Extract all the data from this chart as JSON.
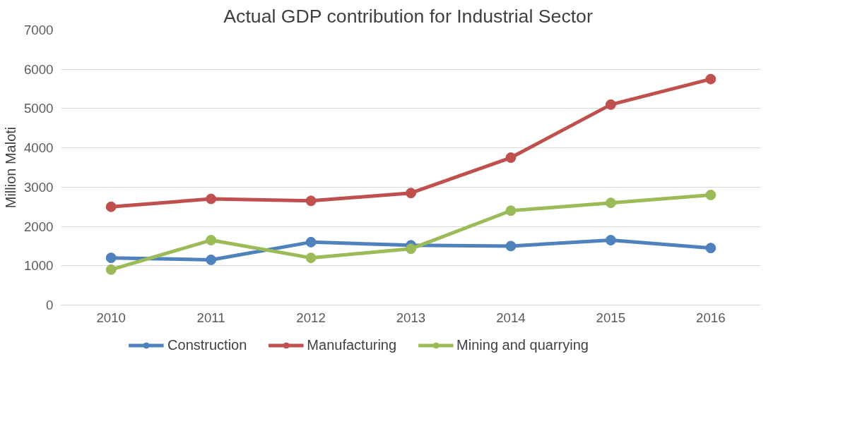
{
  "chart_data": {
    "type": "line",
    "title": "Actual GDP contribution for  Industrial Sector",
    "ylabel": "Million Maloti",
    "categories": [
      "2010",
      "2011",
      "2012",
      "2013",
      "2014",
      "2015",
      "2016"
    ],
    "series": [
      {
        "name": "Construction",
        "color": "#4f81bd",
        "values": [
          1200,
          1150,
          1600,
          1520,
          1500,
          1650,
          1450
        ]
      },
      {
        "name": "Manufacturing",
        "color": "#c0504d",
        "values": [
          2500,
          2700,
          2650,
          2850,
          3750,
          5100,
          5750
        ]
      },
      {
        "name": "Mining and quarrying",
        "color": "#9bbb59",
        "values": [
          900,
          1650,
          1200,
          1430,
          2400,
          2600,
          2800
        ]
      }
    ],
    "ylim": [
      0,
      7000
    ],
    "yticks": [
      0,
      1000,
      2000,
      3000,
      4000,
      5000,
      6000,
      7000
    ],
    "grid": "y",
    "legend": "bottom",
    "marker": "circle",
    "line_style": "solid"
  }
}
